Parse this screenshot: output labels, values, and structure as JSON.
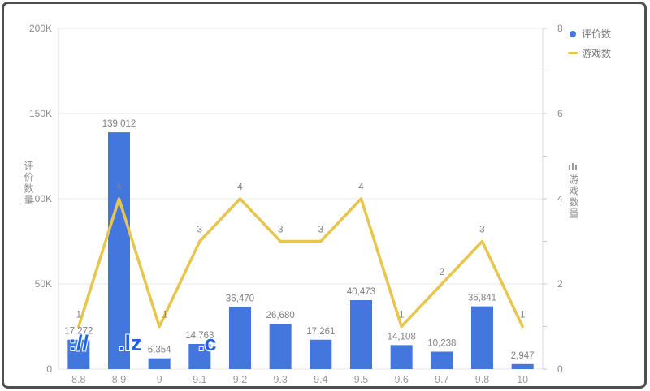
{
  "legend": [
    {
      "label": "评价数",
      "type": "dot",
      "color": "#4377de"
    },
    {
      "label": "游戏数",
      "type": "dash",
      "color": "#e9c64b"
    }
  ],
  "left_axis": {
    "title": "评价数量",
    "ticks": [
      "200K",
      "150K",
      "100K",
      "50K",
      "0"
    ]
  },
  "right_axis": {
    "title": "游戏数量",
    "ticks": [
      "8",
      "6",
      "4",
      "2",
      "0"
    ]
  },
  "watermark": {
    "segments": [
      "://",
      ".lz",
      ".c"
    ]
  },
  "chart_data": {
    "type": "bar",
    "title": "",
    "xlabel": "",
    "ylabel_left": "评价数量",
    "ylabel_right": "游戏数量",
    "grid": true,
    "legend_position": "top-right",
    "categories": [
      "8.8",
      "8.9",
      "9",
      "9.1",
      "9.2",
      "9.3",
      "9.4",
      "9.5",
      "9.6",
      "9.7",
      "9.8",
      "10"
    ],
    "left_ylim": [
      0,
      200000
    ],
    "right_ylim": [
      0,
      8
    ],
    "series": [
      {
        "name": "评价数",
        "type": "bar",
        "axis": "left",
        "color": "#4377de",
        "values": [
          17272,
          139012,
          6354,
          14763,
          36470,
          26680,
          17261,
          40473,
          14108,
          10238,
          36841,
          2947
        ],
        "labels": [
          "17,272",
          "139,012",
          "6,354",
          "14,763",
          "36,470",
          "26,680",
          "17,261",
          "40,473",
          "14,108",
          "10,238",
          "36,841",
          "2,947"
        ]
      },
      {
        "name": "游戏数",
        "type": "line",
        "axis": "right",
        "color": "#e8c54e",
        "values": [
          1,
          4,
          1,
          3,
          4,
          3,
          3,
          4,
          1,
          2,
          3,
          1
        ],
        "labels": [
          "1",
          "4",
          "1",
          "3",
          "4",
          "3",
          "3",
          "4",
          "1",
          "2",
          "3",
          "1"
        ]
      }
    ],
    "style": {
      "grid_color": "#e8e8e8",
      "axis_color": "#d8d8d8",
      "tick_color": "#c9c9c9",
      "tick_text_color": "#8c8c8c",
      "value_label_color": "#808080"
    }
  }
}
